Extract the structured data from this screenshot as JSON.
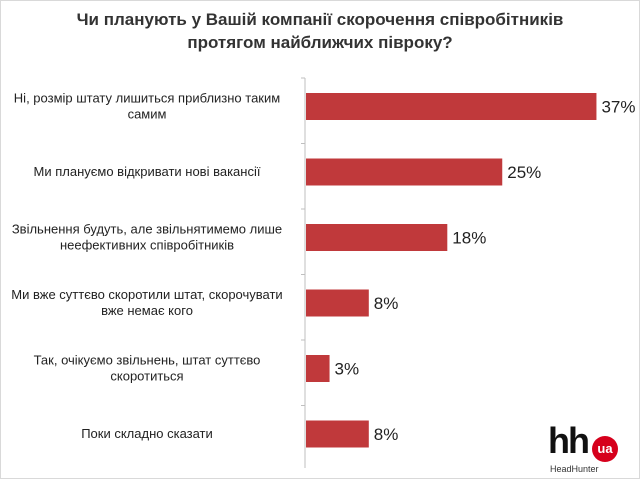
{
  "chart_data": {
    "type": "bar",
    "orientation": "horizontal",
    "title_lines": [
      "Чи планують у Вашій компанії скорочення співробітників",
      "протягом найближчих півроку?"
    ],
    "categories": [
      [
        "Ні, розмір штату лишиться приблизно таким",
        "самим"
      ],
      [
        "Ми плануємо відкривати нові вакансії"
      ],
      [
        "Звільнення будуть, але звільнятимемо лише",
        "неефективних співробітників"
      ],
      [
        "Ми вже суттєво скоротили штат, скорочувати",
        "вже немає кого"
      ],
      [
        "Так, очікуємо звільнень, штат суттєво",
        "скоротиться"
      ],
      [
        "Поки складно сказати"
      ]
    ],
    "values": [
      37,
      25,
      18,
      8,
      3,
      8
    ],
    "value_labels": [
      "37%",
      "25%",
      "18%",
      "8%",
      "3%",
      "8%"
    ],
    "unit": "%",
    "bar_color": "#c0393b",
    "axis_color": "#bfbfbf",
    "grid": false,
    "legend": "none"
  },
  "logo": {
    "text": "hh",
    "badge": "ua",
    "subtitle": "HeadHunter"
  }
}
